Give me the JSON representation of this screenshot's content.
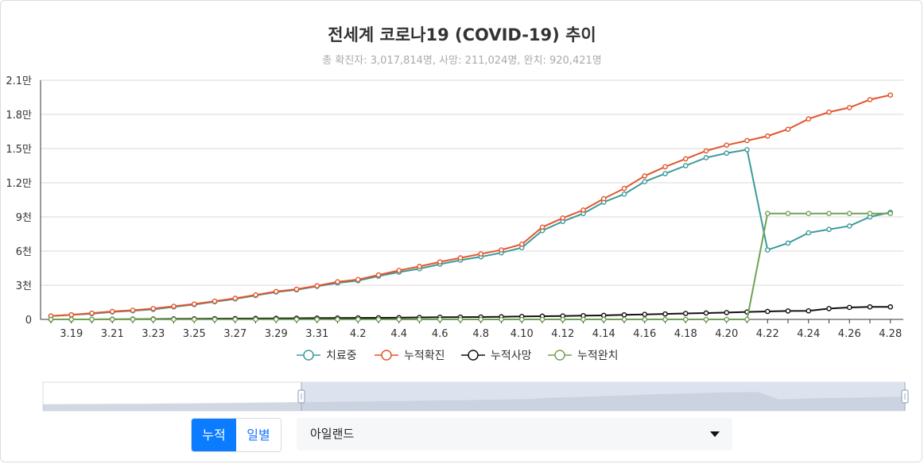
{
  "chart_data": {
    "type": "line",
    "title": "전세계 코로나19 (COVID-19) 추이",
    "subtitle": "총 확진자: 3,017,814명, 사망: 211,024명, 완치: 920,421명",
    "x": [
      "3.18",
      "3.19",
      "3.20",
      "3.21",
      "3.22",
      "3.23",
      "3.24",
      "3.25",
      "3.26",
      "3.27",
      "3.28",
      "3.29",
      "3.30",
      "3.31",
      "4.1",
      "4.2",
      "4.3",
      "4.4",
      "4.5",
      "4.6",
      "4.7",
      "4.8",
      "4.9",
      "4.10",
      "4.11",
      "4.12",
      "4.13",
      "4.14",
      "4.15",
      "4.16",
      "4.17",
      "4.18",
      "4.19",
      "4.20",
      "4.21",
      "4.22",
      "4.23",
      "4.24",
      "4.25",
      "4.26",
      "4.27",
      "4.28"
    ],
    "x_tick_labels": [
      "3.19",
      "3.21",
      "3.23",
      "3.25",
      "3.27",
      "3.29",
      "3.31",
      "4.2",
      "4.4",
      "4.6",
      "4.8",
      "4.10",
      "4.12",
      "4.14",
      "4.16",
      "4.18",
      "4.20",
      "4.22",
      "4.24",
      "4.26",
      "4.28"
    ],
    "y_tick_labels": [
      "0",
      "3천",
      "6천",
      "9천",
      "1.2만",
      "1.5만",
      "1.8만",
      "2.1만"
    ],
    "ylim": [
      0,
      21000
    ],
    "grid": true,
    "legend": "bottom",
    "series": [
      {
        "name": "치료중",
        "color": "#3d9a9b",
        "values": [
          300,
          400,
          500,
          650,
          760,
          880,
          1100,
          1300,
          1550,
          1800,
          2100,
          2400,
          2600,
          2900,
          3200,
          3400,
          3800,
          4150,
          4450,
          4850,
          5200,
          5500,
          5850,
          6300,
          7800,
          8600,
          9300,
          10300,
          11000,
          12100,
          12800,
          13500,
          14200,
          14600,
          14900,
          6100,
          6700,
          7600,
          7900,
          8200,
          9000,
          9400
        ]
      },
      {
        "name": "누적확진",
        "color": "#e2562c",
        "values": [
          300,
          400,
          550,
          700,
          800,
          950,
          1150,
          1350,
          1600,
          1850,
          2150,
          2450,
          2650,
          2950,
          3300,
          3500,
          3900,
          4300,
          4650,
          5050,
          5400,
          5750,
          6100,
          6600,
          8100,
          8900,
          9600,
          10600,
          11500,
          12600,
          13400,
          14100,
          14800,
          15300,
          15700,
          16100,
          16700,
          17600,
          18200,
          18600,
          19300,
          19700
        ]
      },
      {
        "name": "누적사망",
        "color": "#111111",
        "values": [
          0,
          0,
          0,
          10,
          20,
          30,
          40,
          50,
          60,
          70,
          80,
          90,
          100,
          110,
          120,
          130,
          140,
          150,
          170,
          190,
          200,
          210,
          230,
          260,
          280,
          300,
          330,
          350,
          400,
          440,
          480,
          520,
          560,
          600,
          650,
          700,
          740,
          750,
          950,
          1050,
          1100,
          1100
        ]
      },
      {
        "name": "누적완치",
        "color": "#71a254",
        "values": [
          0,
          0,
          0,
          0,
          0,
          0,
          0,
          0,
          0,
          0,
          0,
          0,
          0,
          0,
          0,
          0,
          0,
          0,
          0,
          0,
          0,
          0,
          0,
          0,
          0,
          0,
          0,
          0,
          0,
          0,
          0,
          0,
          0,
          0,
          0,
          9300,
          9300,
          9300,
          9300,
          9300,
          9300,
          9300
        ]
      }
    ]
  },
  "controls": {
    "mode_buttons": [
      "누적",
      "일별"
    ],
    "active_mode": "누적",
    "country_selected": "아일랜드"
  }
}
